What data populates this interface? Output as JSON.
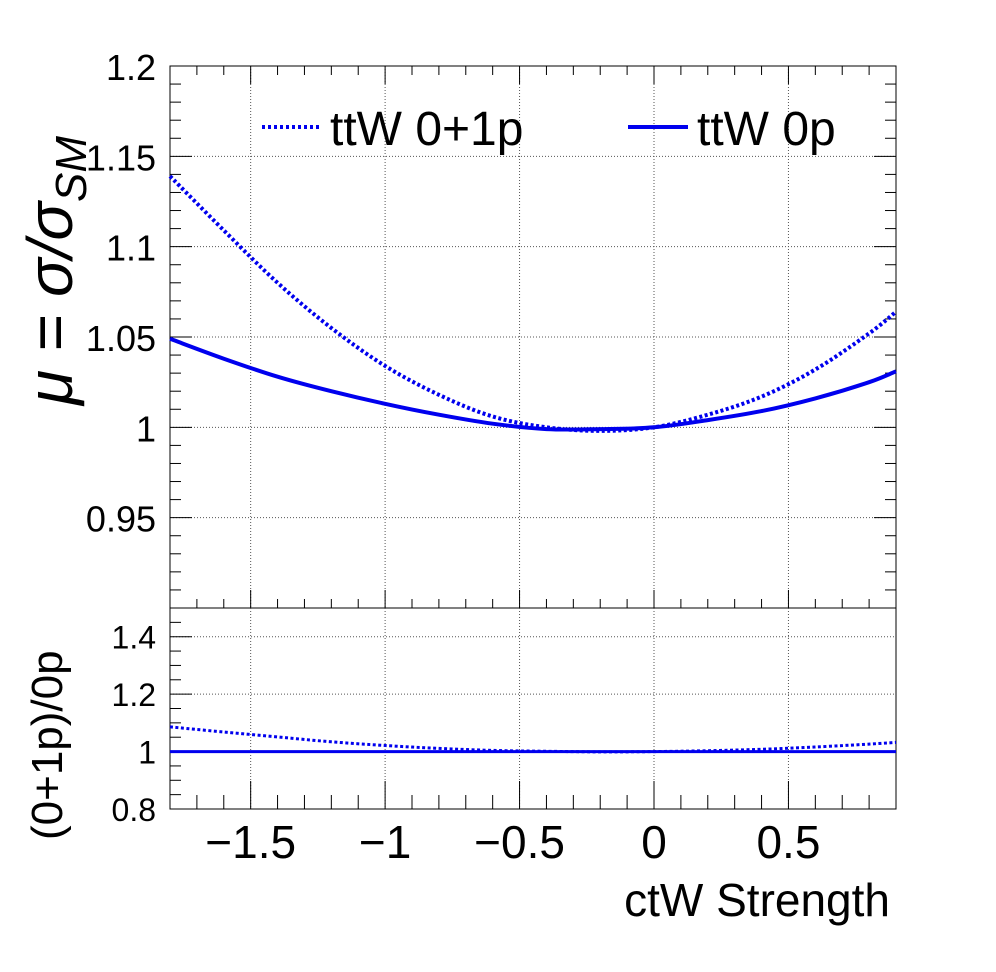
{
  "chart_data": [
    {
      "type": "line",
      "ylabel": "μ = σ/σ",
      "ylabel_sub": "SM",
      "xlim": [
        -1.8,
        0.9
      ],
      "ylim": [
        0.9,
        1.2
      ],
      "grid": true,
      "yticks": [
        0.95,
        1.0,
        1.05,
        1.1,
        1.15,
        1.2
      ],
      "ytick_labels": [
        "0.95",
        "1",
        "1.05",
        "1.1",
        "1.15",
        "1.2"
      ],
      "xticks": [
        -1.5,
        -1.0,
        -0.5,
        0.0,
        0.5
      ],
      "legend_position": "top",
      "series": [
        {
          "name": "ttW 0+1p",
          "style": "dotted",
          "color": "#0000ee",
          "x": [
            -1.8,
            -1.6,
            -1.4,
            -1.2,
            -1.0,
            -0.8,
            -0.6,
            -0.4,
            -0.2,
            0.0,
            0.2,
            0.4,
            0.6,
            0.8,
            0.9
          ],
          "y": [
            1.139,
            1.109,
            1.08,
            1.055,
            1.034,
            1.018,
            1.006,
            1.0,
            0.998,
            1.0,
            1.007,
            1.017,
            1.032,
            1.052,
            1.064
          ]
        },
        {
          "name": "ttW 0p",
          "style": "solid",
          "color": "#0000ee",
          "x": [
            -1.8,
            -1.6,
            -1.4,
            -1.2,
            -1.0,
            -0.8,
            -0.6,
            -0.4,
            -0.2,
            0.0,
            0.2,
            0.4,
            0.6,
            0.8,
            0.9
          ],
          "y": [
            1.049,
            1.038,
            1.028,
            1.02,
            1.013,
            1.007,
            1.002,
            0.999,
            0.999,
            1.0,
            1.004,
            1.009,
            1.016,
            1.025,
            1.031
          ]
        }
      ]
    },
    {
      "type": "line",
      "xlabel": "ctW Strength",
      "ylabel": "(0+1p)/0p",
      "xlim": [
        -1.8,
        0.9
      ],
      "ylim": [
        0.8,
        1.5
      ],
      "grid": true,
      "yticks": [
        0.8,
        1.0,
        1.2,
        1.4
      ],
      "ytick_labels": [
        "0.8",
        "1",
        "1.2",
        "1.4"
      ],
      "xticks": [
        -1.5,
        -1.0,
        -0.5,
        0.0,
        0.5
      ],
      "xtick_labels": [
        "−1.5",
        "−1",
        "−0.5",
        "0",
        "0.5"
      ],
      "series": [
        {
          "name": "ttW 0+1p",
          "style": "dotted",
          "color": "#0000ee",
          "x": [
            -1.8,
            -1.6,
            -1.4,
            -1.2,
            -1.0,
            -0.8,
            -0.6,
            -0.4,
            -0.2,
            0.0,
            0.2,
            0.4,
            0.6,
            0.8,
            0.9
          ],
          "y": [
            1.086,
            1.068,
            1.051,
            1.034,
            1.021,
            1.011,
            1.004,
            1.001,
            0.999,
            1.0,
            1.003,
            1.008,
            1.016,
            1.026,
            1.032
          ]
        },
        {
          "name": "ttW 0p",
          "style": "solid",
          "color": "#0000ee",
          "x": [
            -1.8,
            0.9
          ],
          "y": [
            1.0,
            1.0
          ]
        }
      ]
    }
  ]
}
